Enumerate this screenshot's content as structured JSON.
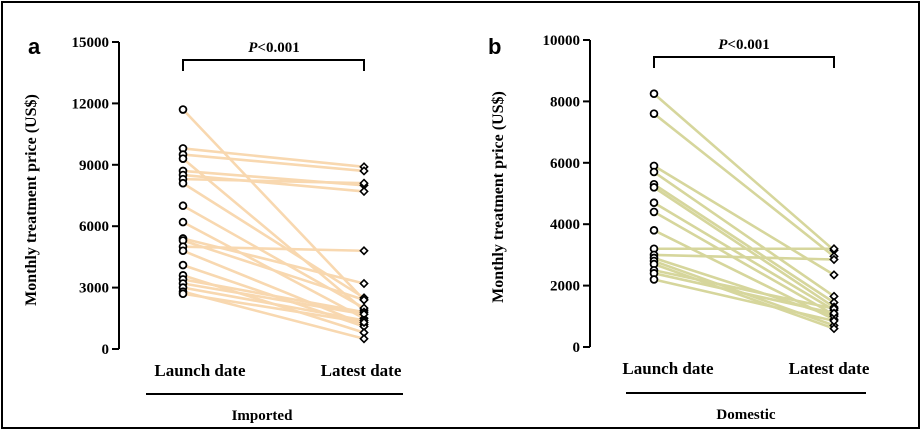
{
  "chart_data": [
    {
      "type": "line",
      "panel_label": "a",
      "categories": [
        "Launch date",
        "Latest date"
      ],
      "group_label": "Imported",
      "ylabel": "Monthly treatment price (US$)",
      "ylim": [
        0,
        15000
      ],
      "yticks": [
        "0",
        "3000",
        "6000",
        "9000",
        "12000",
        "15000"
      ],
      "annotation": {
        "italic": "P",
        "rest": "<0.001"
      },
      "color": "#f8d8b0",
      "pairs": [
        [
          11700,
          2400
        ],
        [
          9800,
          8900
        ],
        [
          9500,
          8700
        ],
        [
          9300,
          1900
        ],
        [
          8700,
          8000
        ],
        [
          8500,
          7700
        ],
        [
          8300,
          8100
        ],
        [
          8100,
          2500
        ],
        [
          7000,
          2000
        ],
        [
          6200,
          1500
        ],
        [
          5400,
          3200
        ],
        [
          5300,
          2400
        ],
        [
          5000,
          4800
        ],
        [
          4800,
          1200
        ],
        [
          4100,
          1100
        ],
        [
          3600,
          800
        ],
        [
          3400,
          1800
        ],
        [
          3200,
          1700
        ],
        [
          3000,
          1400
        ],
        [
          2800,
          500
        ],
        [
          2700,
          1300
        ]
      ]
    },
    {
      "type": "line",
      "panel_label": "b",
      "categories": [
        "Launch date",
        "Latest date"
      ],
      "group_label": "Domestic",
      "ylabel": "Monthly treatment price (US$)",
      "ylim": [
        0,
        10000
      ],
      "yticks": [
        "0",
        "2000",
        "4000",
        "6000",
        "8000",
        "10000"
      ],
      "annotation": {
        "italic": "P",
        "rest": "<0.001"
      },
      "color": "#d6d69c",
      "pairs": [
        [
          8250,
          3150
        ],
        [
          7600,
          2950
        ],
        [
          5900,
          2350
        ],
        [
          5700,
          1650
        ],
        [
          5300,
          1450
        ],
        [
          5200,
          1300
        ],
        [
          4700,
          1200
        ],
        [
          4400,
          1050
        ],
        [
          3800,
          900
        ],
        [
          3200,
          3200
        ],
        [
          3000,
          2850
        ],
        [
          2900,
          1000
        ],
        [
          2800,
          700
        ],
        [
          2700,
          600
        ],
        [
          2500,
          1250
        ],
        [
          2400,
          1100
        ],
        [
          2200,
          850
        ]
      ]
    }
  ]
}
